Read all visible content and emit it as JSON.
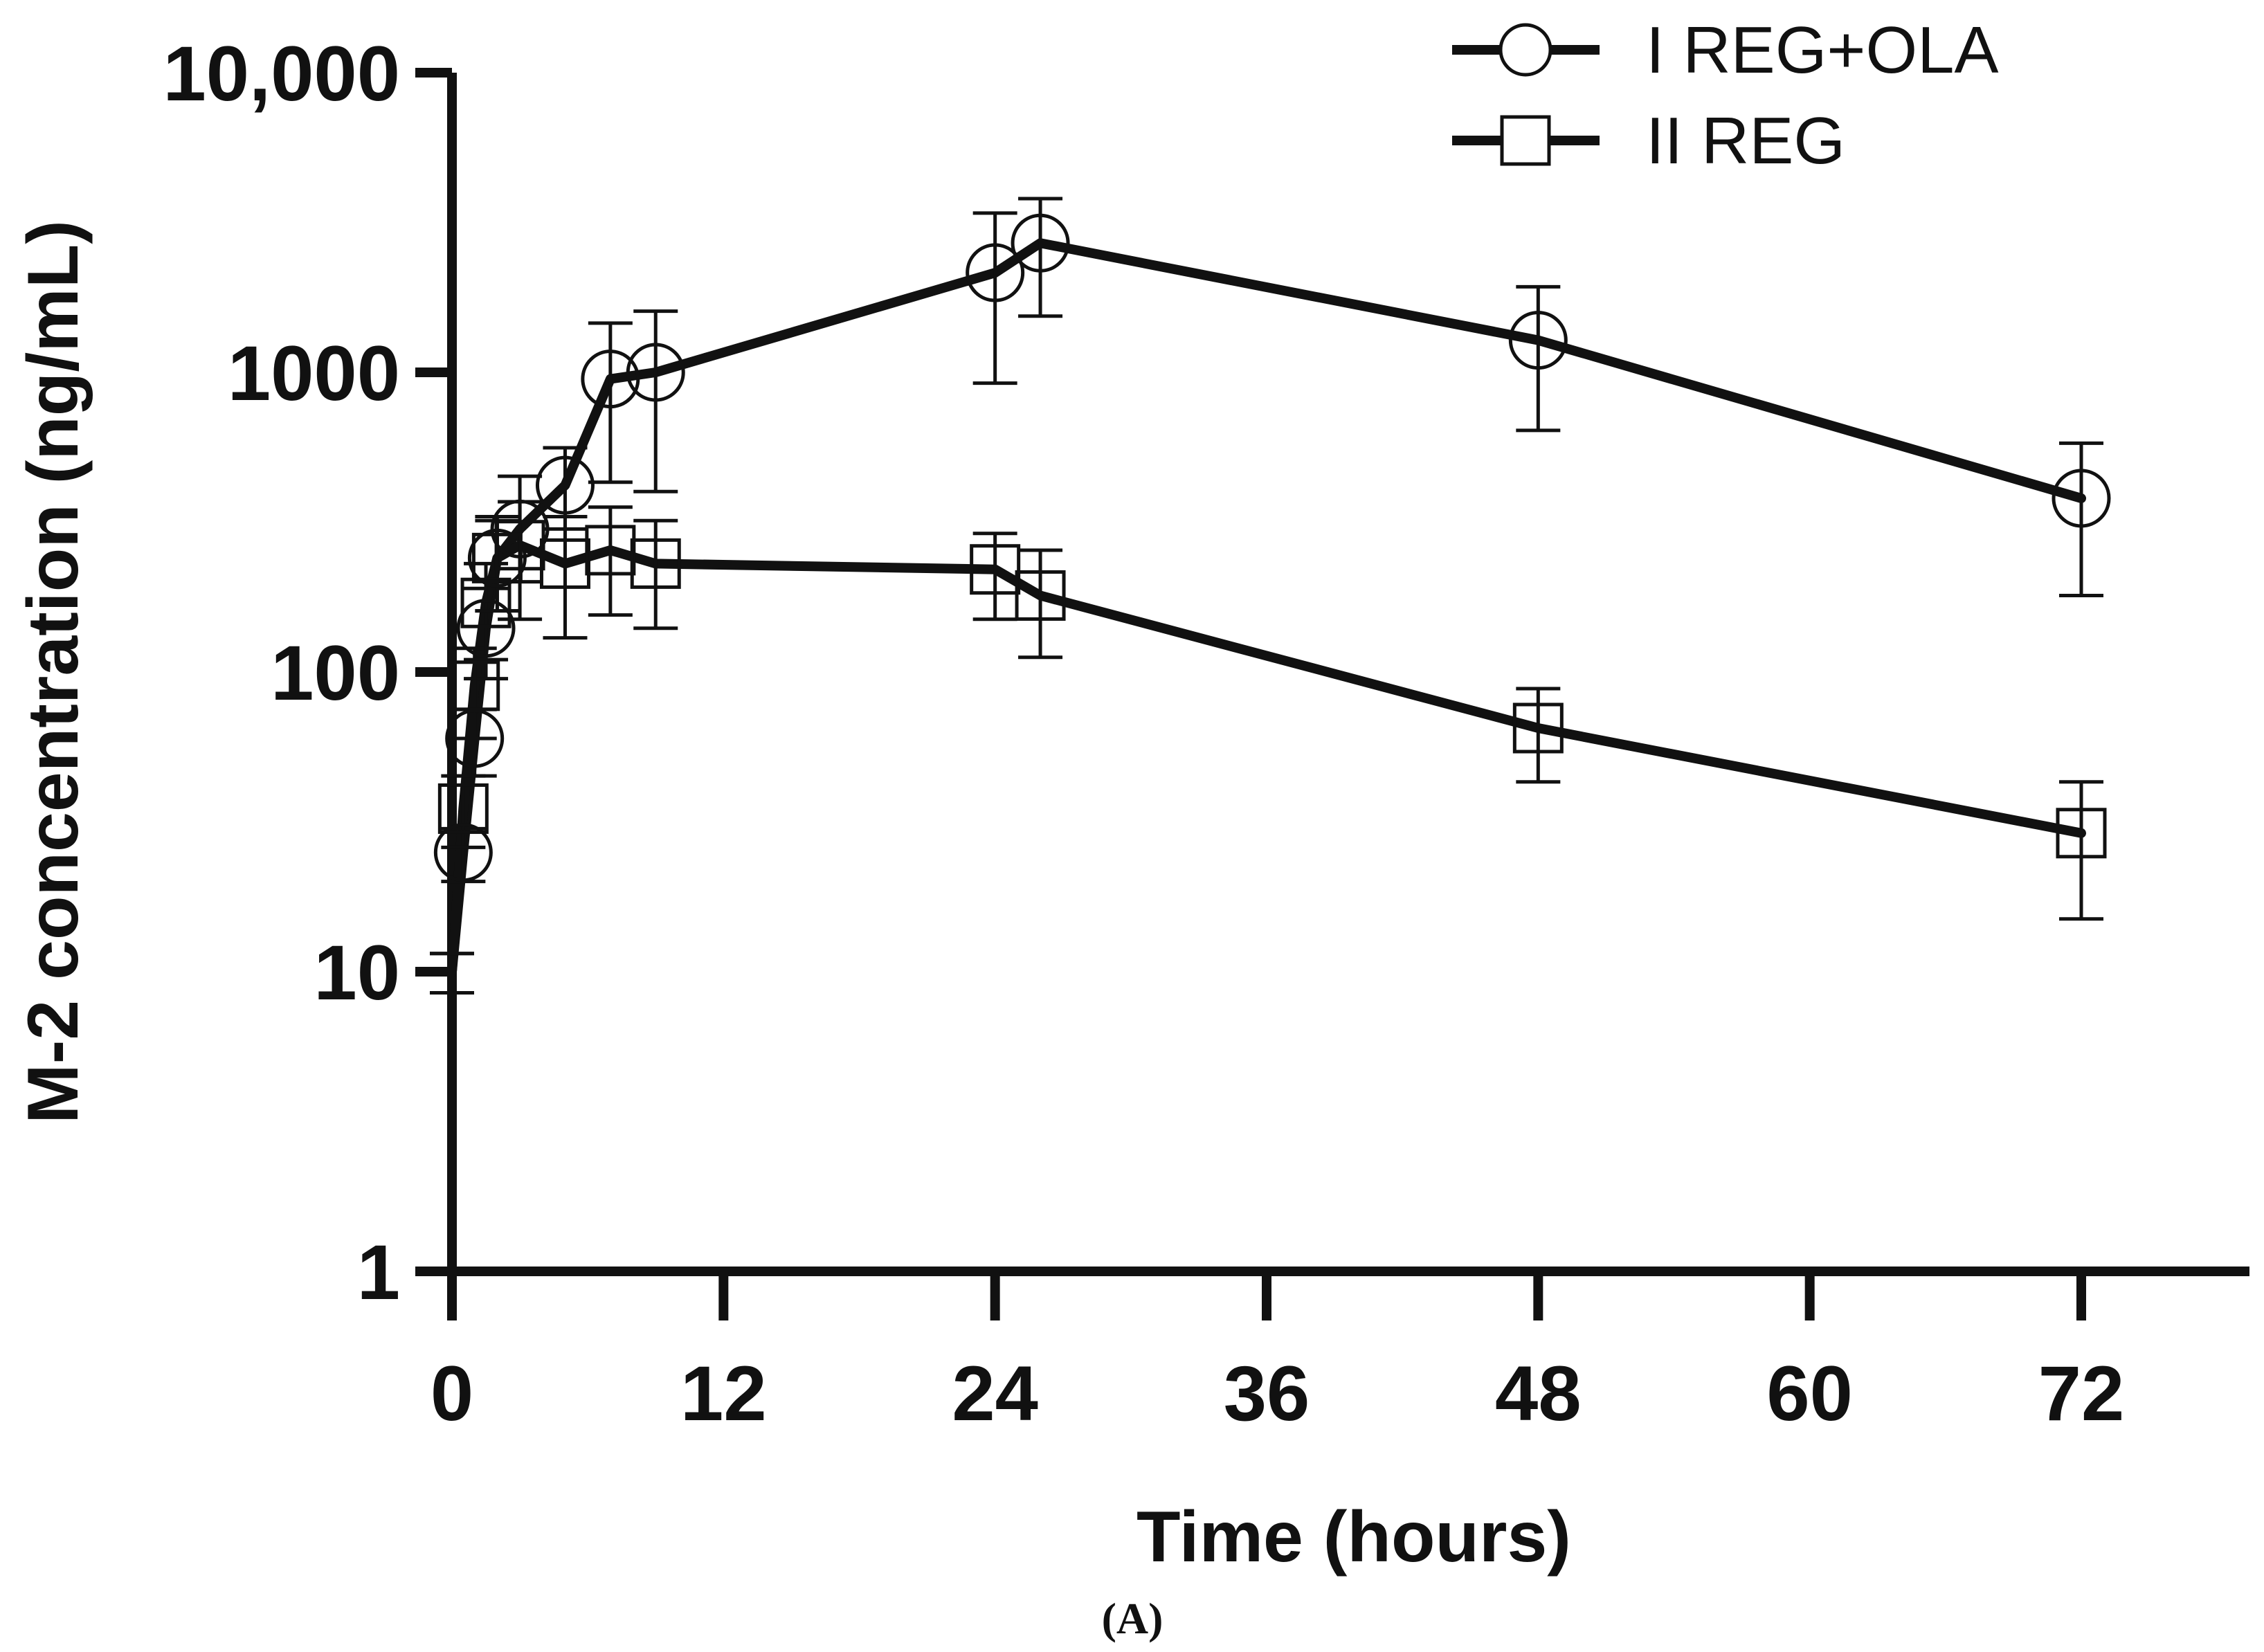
{
  "chart_data": {
    "type": "line",
    "title": "",
    "xlabel": "Time (hours)",
    "ylabel": "M-2 concentration (ng/mL)",
    "yscale": "log",
    "xlim": [
      -1,
      80
    ],
    "ylim": [
      1,
      10000
    ],
    "xticks": [
      0,
      12,
      24,
      36,
      48,
      60,
      72
    ],
    "xtick_labels": [
      "0",
      "12",
      "24",
      "36",
      "48",
      "60",
      "72"
    ],
    "yticks": [
      1,
      10,
      100,
      1000,
      10000
    ],
    "ytick_labels": [
      "1",
      "10",
      "100",
      "1000",
      "10,000"
    ],
    "panel_label": "(A)",
    "legend_position": "top-right",
    "series": [
      {
        "name": "I REG+OLA",
        "marker": "circle",
        "color": "#111111",
        "x": [
          0,
          0.5,
          1,
          1.5,
          2,
          3,
          5,
          7,
          9,
          24,
          26,
          48,
          72
        ],
        "y": [
          10,
          25,
          60,
          140,
          240,
          300,
          420,
          950,
          1000,
          2150,
          2700,
          1280,
          380
        ],
        "err_low": [
          8.5,
          20,
          45,
          95,
          160,
          200,
          300,
          430,
          400,
          920,
          1540,
          640,
          180
        ],
        "err_high": [
          11.5,
          30,
          75,
          190,
          330,
          450,
          560,
          1460,
          1600,
          3400,
          3800,
          1930,
          580
        ]
      },
      {
        "name": "II REG",
        "marker": "square",
        "color": "#111111",
        "x": [
          0,
          0.5,
          1,
          1.5,
          2,
          3,
          5,
          7,
          9,
          24,
          26,
          48,
          72
        ],
        "y": [
          10,
          35,
          90,
          170,
          240,
          265,
          230,
          255,
          230,
          220,
          180,
          65,
          29
        ],
        "err_low": [
          8.5,
          26,
          60,
          110,
          160,
          150,
          130,
          155,
          140,
          150,
          112,
          43,
          15
        ],
        "err_high": [
          11.5,
          45,
          120,
          230,
          320,
          370,
          330,
          355,
          320,
          290,
          255,
          88,
          43
        ]
      }
    ]
  }
}
